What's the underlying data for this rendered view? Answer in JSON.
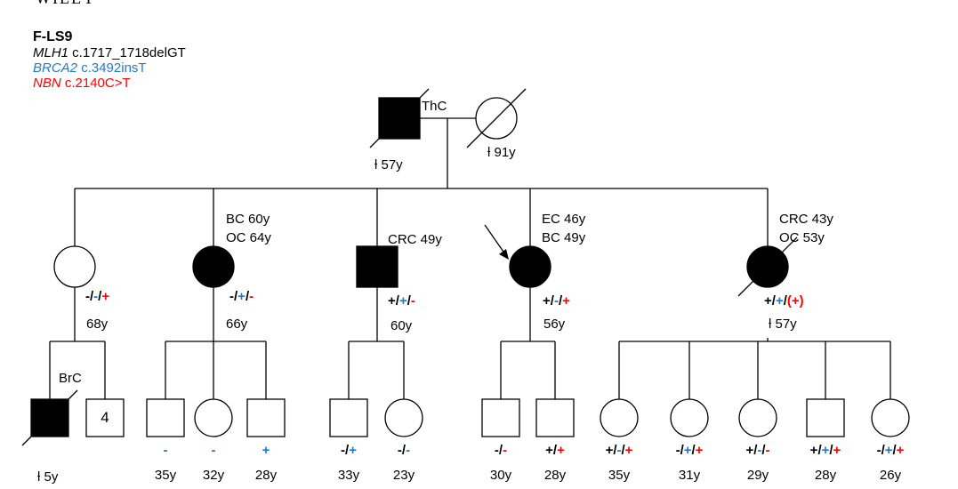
{
  "watermark": "WILEY",
  "family": {
    "id": "F-LS9",
    "variants": [
      {
        "gene": "MLH1",
        "change": " c.1717_1718delGT",
        "color": "#000000"
      },
      {
        "gene": "BRCA2",
        "change": " c.3492insT",
        "color": "#1f7ad1"
      },
      {
        "gene": "NBN",
        "change": " c.2140C>T",
        "color": "#ff0000"
      }
    ]
  },
  "legend_colors": {
    "gene1": "#000000",
    "gene2": "#1f7ad1",
    "gene3": "#ff0000"
  },
  "individuals": {
    "gen1_father": {
      "sex": "male",
      "affected": true,
      "deceased": true,
      "labels": [
        "ThC"
      ],
      "age": "ƚ 57y"
    },
    "gen1_mother": {
      "sex": "female",
      "affected": false,
      "deceased": true,
      "labels": [],
      "age": "ƚ 91y"
    },
    "child1": {
      "sex": "female",
      "affected": false,
      "deceased": false,
      "labels": [],
      "genotype": [
        "-",
        "-",
        "+"
      ],
      "age": "68y"
    },
    "child2": {
      "sex": "female",
      "affected": true,
      "deceased": false,
      "labels": [
        "BC 60y",
        "OC 64y"
      ],
      "genotype": [
        "-",
        "+",
        "-"
      ],
      "age": "66y"
    },
    "child3": {
      "sex": "male",
      "affected": true,
      "deceased": false,
      "labels": [
        "CRC 49y"
      ],
      "genotype": [
        "+",
        "+",
        "-"
      ],
      "age": "60y"
    },
    "child4": {
      "sex": "female",
      "affected": true,
      "deceased": false,
      "proband": true,
      "labels": [
        "EC 46y",
        "BC 49y"
      ],
      "genotype": [
        "+",
        "-",
        "+"
      ],
      "age": "56y"
    },
    "child5": {
      "sex": "female",
      "affected": true,
      "deceased": true,
      "labels": [
        "CRC 43y",
        "OC 53y"
      ],
      "genotype": [
        "+",
        "+",
        "(+)"
      ],
      "age": "ƚ 57y"
    },
    "gc1": {
      "sex": "male",
      "affected": true,
      "deceased": true,
      "labels": [
        "BrC"
      ],
      "age": "ƚ 5y"
    },
    "gc2": {
      "sex": "male",
      "affected": false,
      "deceased": false,
      "count": "4"
    },
    "gc3": {
      "sex": "male",
      "affected": false,
      "genotype": [
        "",
        "-",
        ""
      ],
      "age": "35y"
    },
    "gc4": {
      "sex": "female",
      "affected": false,
      "genotype": [
        "",
        "-",
        ""
      ],
      "age": "32y"
    },
    "gc5": {
      "sex": "male",
      "affected": false,
      "genotype": [
        "",
        "+",
        ""
      ],
      "age": "28y"
    },
    "gc6": {
      "sex": "male",
      "affected": false,
      "genotype": [
        "-",
        "+",
        ""
      ],
      "age": "33y"
    },
    "gc7": {
      "sex": "female",
      "affected": false,
      "genotype": [
        "-",
        "-",
        ""
      ],
      "age": "23y"
    },
    "gc8": {
      "sex": "male",
      "affected": false,
      "genotype": [
        "-",
        "",
        "-"
      ],
      "age": "30y"
    },
    "gc9": {
      "sex": "male",
      "affected": false,
      "genotype": [
        "+",
        "",
        "+"
      ],
      "age": "28y"
    },
    "gc10": {
      "sex": "female",
      "affected": false,
      "genotype": [
        "+",
        "-",
        "+"
      ],
      "age": "35y"
    },
    "gc11": {
      "sex": "female",
      "affected": false,
      "genotype": [
        "-",
        "+",
        "+"
      ],
      "age": "31y"
    },
    "gc12": {
      "sex": "female",
      "affected": false,
      "genotype": [
        "+",
        "-",
        "-"
      ],
      "age": "29y"
    },
    "gc13": {
      "sex": "male",
      "affected": false,
      "genotype": [
        "+",
        "+",
        "+"
      ],
      "age": "28y"
    },
    "gc14": {
      "sex": "female",
      "affected": false,
      "genotype": [
        "-",
        "+",
        "+"
      ],
      "age": "26y"
    }
  }
}
